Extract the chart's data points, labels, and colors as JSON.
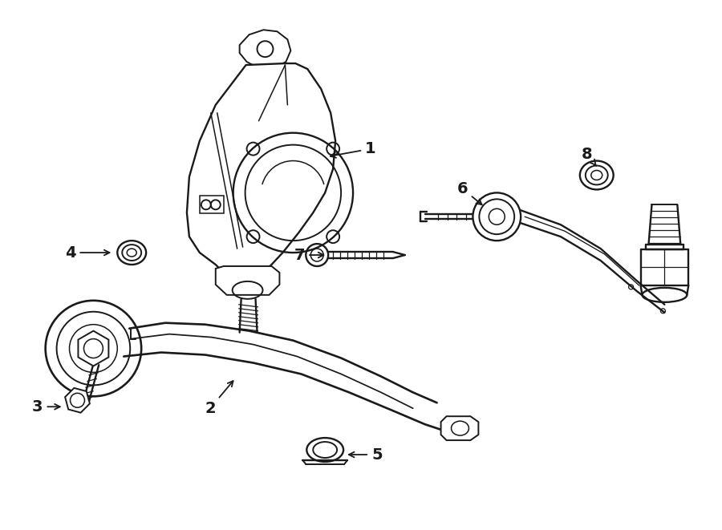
{
  "bg_color": "#ffffff",
  "line_color": "#1a1a1a",
  "lw": 1.4,
  "figsize": [
    9.0,
    6.61
  ],
  "dpi": 100
}
